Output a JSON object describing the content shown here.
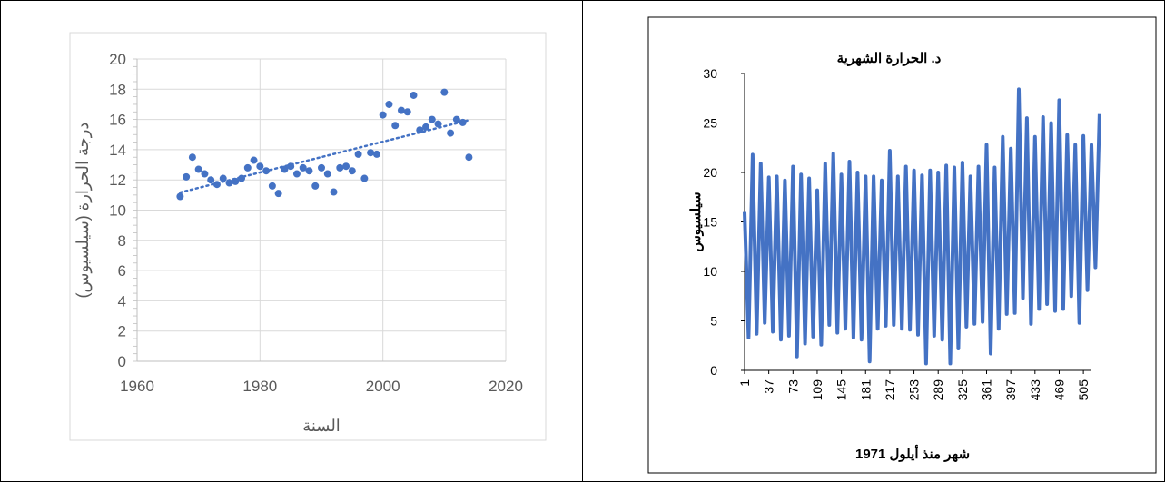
{
  "chart_data": [
    {
      "type": "scatter",
      "title": "",
      "xlabel": "السنة",
      "ylabel": "درجة الحرارة (سيلسيوس)",
      "xlim": [
        1960,
        2020
      ],
      "ylim": [
        0,
        20
      ],
      "xticks": [
        "1960",
        "1980",
        "2000",
        "2020"
      ],
      "yticks": [
        "0",
        "2",
        "4",
        "6",
        "8",
        "10",
        "12",
        "14",
        "16",
        "18",
        "20"
      ],
      "grid": true,
      "trendline": "linear",
      "marker_color": "#4472C4",
      "points": [
        [
          1967,
          10.9
        ],
        [
          1968,
          12.2
        ],
        [
          1969,
          13.5
        ],
        [
          1970,
          12.7
        ],
        [
          1971,
          12.4
        ],
        [
          1972,
          12.0
        ],
        [
          1973,
          11.7
        ],
        [
          1974,
          12.1
        ],
        [
          1975,
          11.8
        ],
        [
          1976,
          11.9
        ],
        [
          1977,
          12.1
        ],
        [
          1978,
          12.8
        ],
        [
          1979,
          13.3
        ],
        [
          1980,
          12.9
        ],
        [
          1981,
          12.6
        ],
        [
          1982,
          11.6
        ],
        [
          1983,
          11.1
        ],
        [
          1984,
          12.7
        ],
        [
          1985,
          12.9
        ],
        [
          1986,
          12.4
        ],
        [
          1987,
          12.8
        ],
        [
          1988,
          12.6
        ],
        [
          1989,
          11.6
        ],
        [
          1990,
          12.8
        ],
        [
          1991,
          12.4
        ],
        [
          1992,
          11.2
        ],
        [
          1993,
          12.8
        ],
        [
          1994,
          12.9
        ],
        [
          1995,
          12.6
        ],
        [
          1996,
          13.7
        ],
        [
          1997,
          12.1
        ],
        [
          1998,
          13.8
        ],
        [
          1999,
          13.7
        ],
        [
          2000,
          16.3
        ],
        [
          2001,
          17.0
        ],
        [
          2002,
          15.6
        ],
        [
          2003,
          16.6
        ],
        [
          2004,
          16.5
        ],
        [
          2005,
          17.6
        ],
        [
          2006,
          15.3
        ],
        [
          2007,
          15.5
        ],
        [
          2008,
          16.0
        ],
        [
          2009,
          15.7
        ],
        [
          2010,
          17.8
        ],
        [
          2011,
          15.1
        ],
        [
          2012,
          16.0
        ],
        [
          2013,
          15.8
        ],
        [
          2014,
          13.5
        ]
      ]
    },
    {
      "type": "line",
      "title": "د. الحرارة الشهرية",
      "xlabel": "شهر منذ أيلول 1971",
      "ylabel": "سيلسيوس",
      "xlim": [
        1,
        517
      ],
      "ylim": [
        0,
        30
      ],
      "xticks": [
        "1",
        "37",
        "73",
        "109",
        "145",
        "181",
        "217",
        "253",
        "289",
        "325",
        "361",
        "397",
        "433",
        "469",
        "505"
      ],
      "yticks": [
        "0",
        "5",
        "10",
        "15",
        "20",
        "25",
        "30"
      ],
      "grid": false,
      "line_color": "#4472C4",
      "series": [
        {
          "name": "",
          "x_start": 1,
          "x_step": 6,
          "values": [
            16.0,
            3.3,
            21.8,
            3.7,
            20.9,
            4.8,
            19.5,
            3.9,
            19.6,
            3.1,
            19.2,
            3.5,
            20.6,
            1.4,
            19.8,
            2.7,
            19.4,
            3.4,
            18.2,
            2.6,
            20.9,
            4.6,
            21.9,
            3.8,
            19.8,
            4.2,
            21.1,
            3.3,
            20.0,
            3.1,
            19.6,
            0.9,
            19.6,
            4.2,
            19.2,
            4.5,
            22.2,
            4.6,
            19.6,
            4.2,
            20.6,
            4.1,
            20.2,
            3.6,
            19.7,
            0.7,
            20.2,
            3.5,
            20.0,
            3.1,
            20.7,
            0.7,
            20.5,
            2.2,
            21.0,
            4.4,
            19.6,
            4.7,
            20.6,
            4.9,
            22.8,
            1.7,
            20.5,
            4.2,
            23.6,
            5.7,
            22.4,
            5.8,
            28.4,
            7.3,
            25.5,
            4.7,
            23.6,
            6.2,
            25.6,
            6.7,
            25.0,
            6.0,
            27.3,
            6.2,
            23.8,
            7.5,
            22.8,
            4.8,
            23.7,
            8.1,
            22.8,
            10.4,
            25.9
          ]
        }
      ]
    }
  ]
}
